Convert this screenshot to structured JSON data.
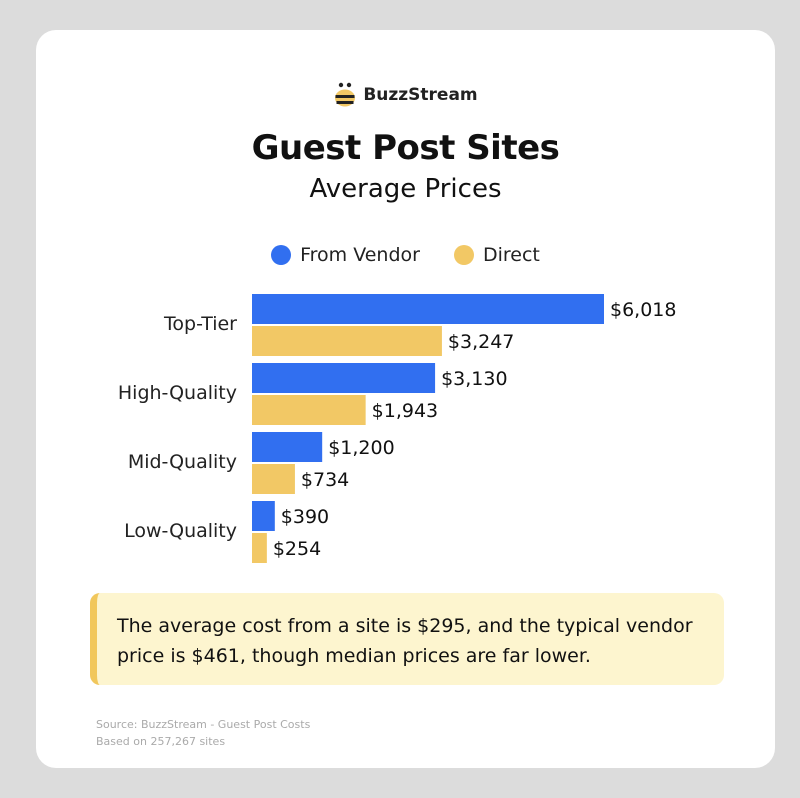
{
  "brand": {
    "name": "BuzzStream",
    "logo_icon": "bee-icon"
  },
  "colors": {
    "vendor": "#316ff0",
    "direct": "#f2c865",
    "callout_bg": "#fdf5cf",
    "callout_accent": "#f1c75c"
  },
  "chart_data": {
    "type": "bar",
    "orientation": "horizontal",
    "title": "Guest Post Sites",
    "subtitle": "Average Prices",
    "legend_position": "top",
    "categories": [
      "Top-Tier",
      "High-Quality",
      "Mid-Quality",
      "Low-Quality"
    ],
    "series": [
      {
        "name": "From Vendor",
        "values": [
          6018,
          3130,
          1200,
          390
        ],
        "labels": [
          "$6,018",
          "$3,130",
          "$1,200",
          "$390"
        ]
      },
      {
        "name": "Direct",
        "values": [
          3247,
          1943,
          734,
          254
        ],
        "labels": [
          "$3,247",
          "$1,943",
          "$734",
          "$254"
        ]
      }
    ],
    "xlim": [
      0,
      6018
    ],
    "grid": false
  },
  "callout": {
    "text": "The average cost from a site is $295, and the typical vendor price is $461, though median prices are far lower."
  },
  "source": {
    "line1": "Source: BuzzStream - Guest Post Costs",
    "line2": "Based on 257,267 sites"
  }
}
